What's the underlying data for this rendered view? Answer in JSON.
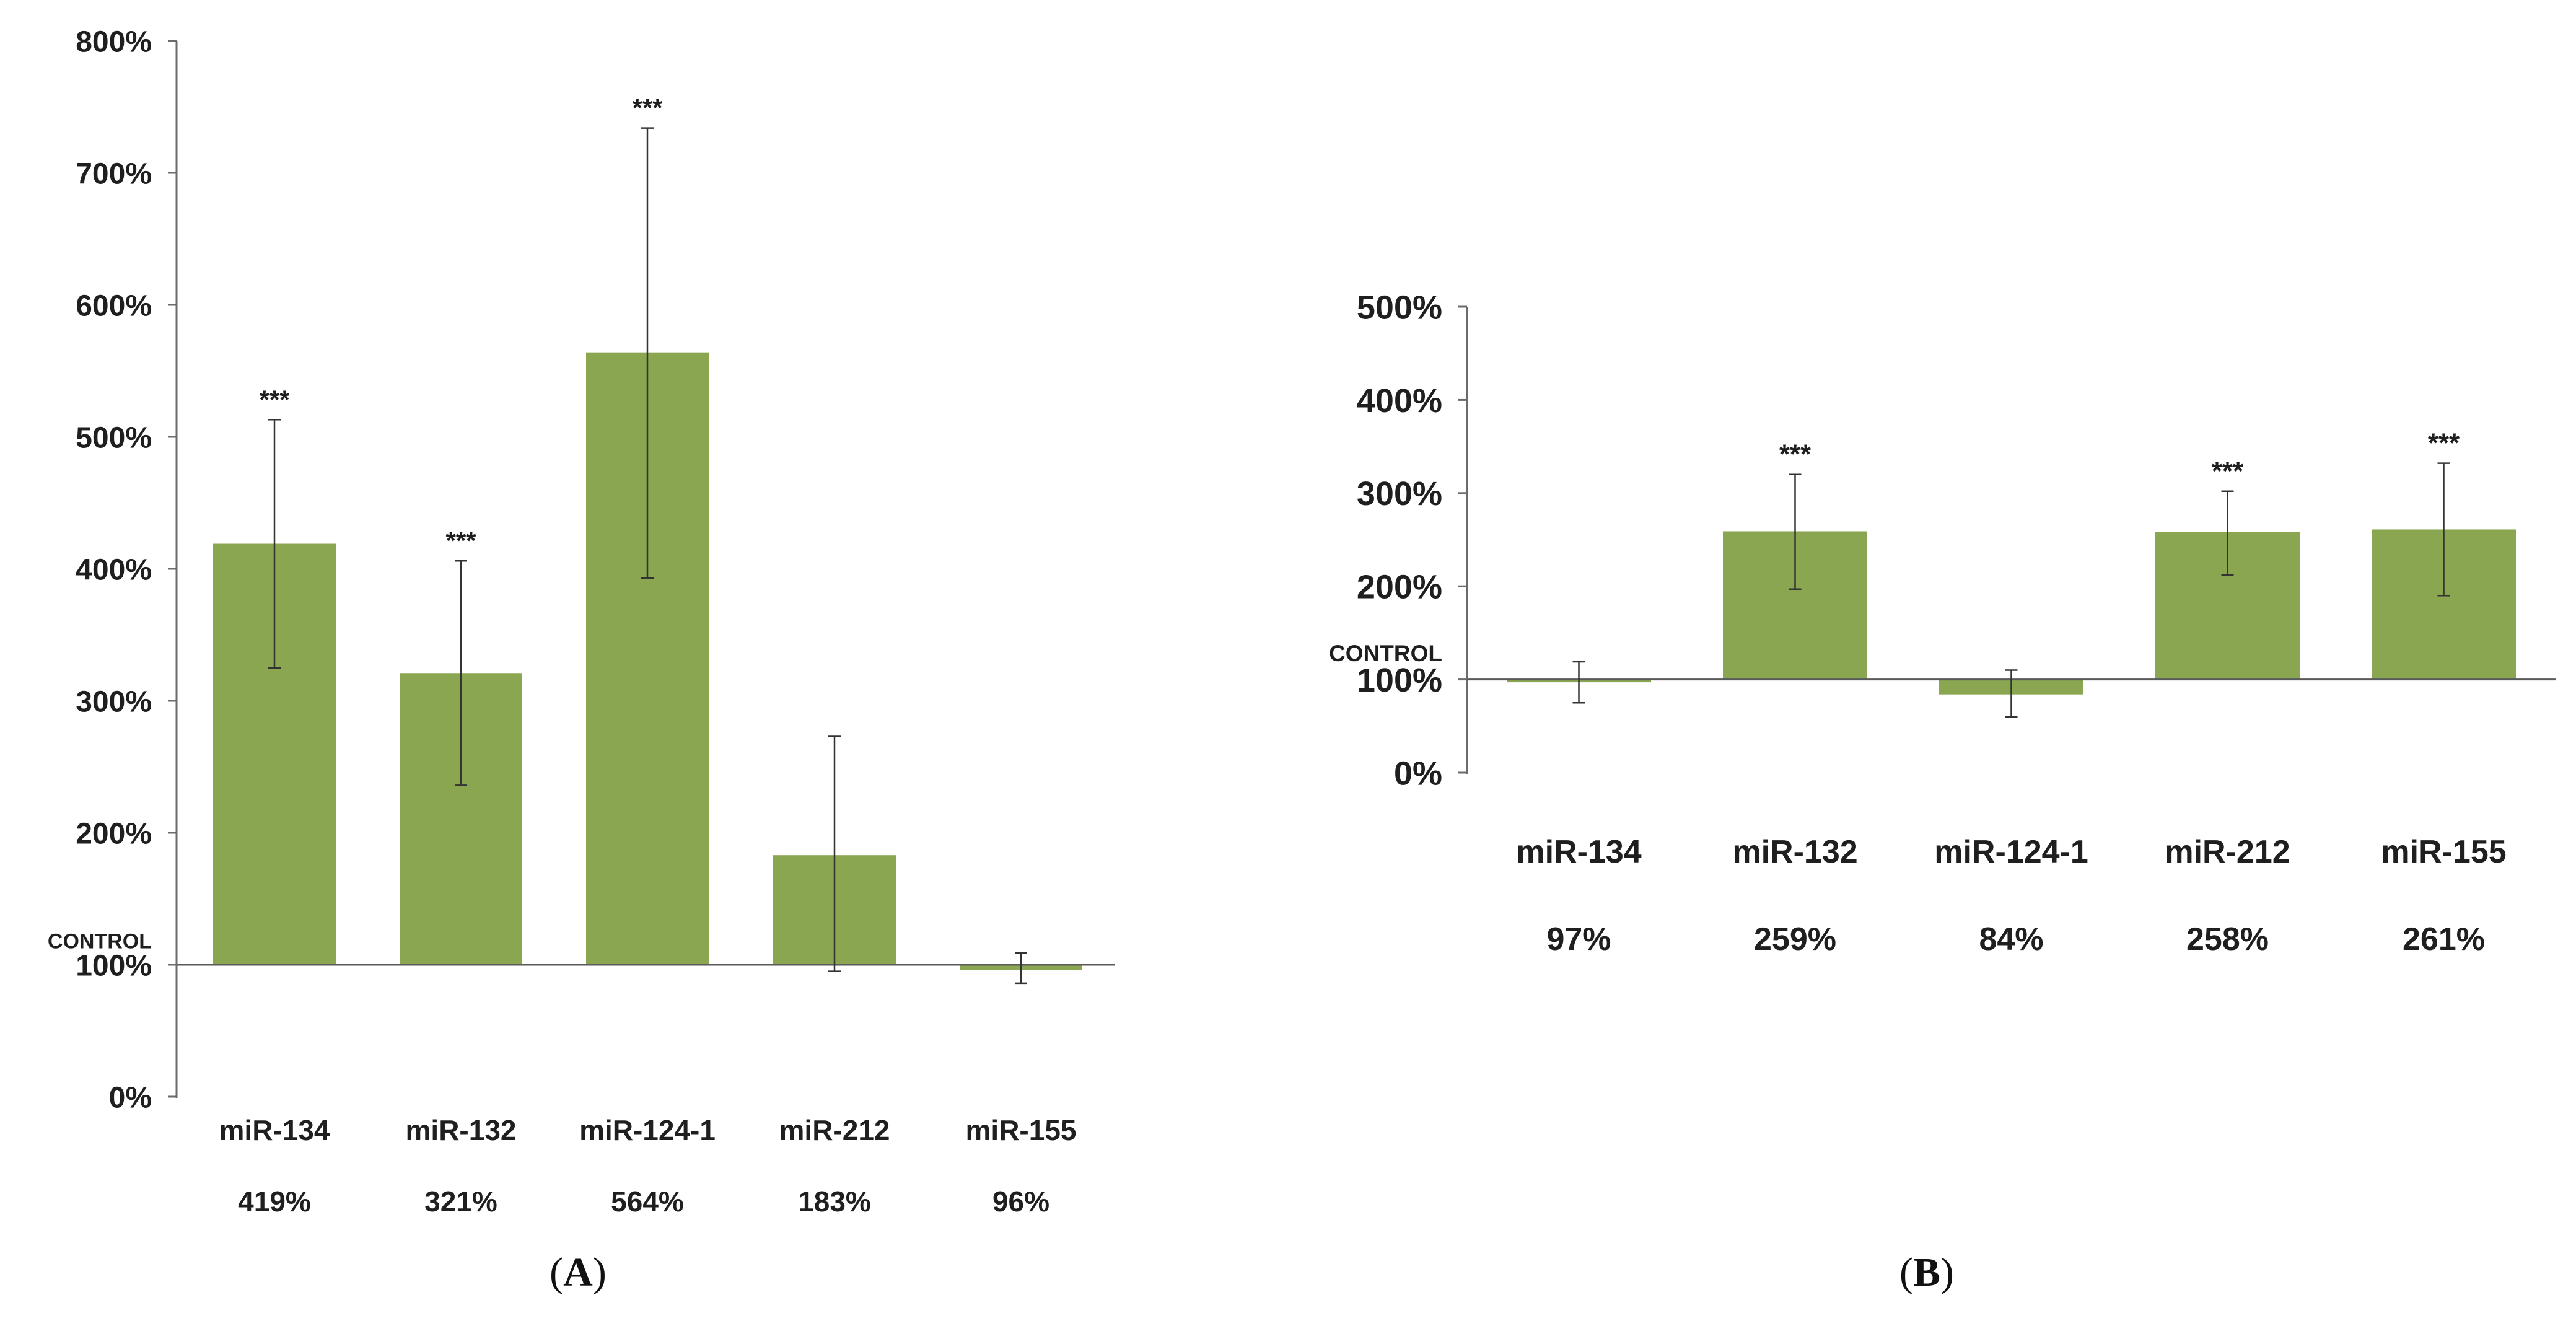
{
  "chart_data": [
    {
      "type": "bar",
      "panel_label": "A",
      "reference_label": "CONTROL",
      "baseline": 100,
      "ylim": [
        0,
        800
      ],
      "yticks": [
        0,
        100,
        200,
        300,
        400,
        500,
        600,
        700,
        800
      ],
      "ytick_labels": [
        "0%",
        "100%",
        "200%",
        "300%",
        "400%",
        "500%",
        "600%",
        "700%",
        "800%"
      ],
      "categories": [
        "miR-134",
        "miR-132",
        "miR-124-1",
        "miR-212",
        "miR-155"
      ],
      "value_labels": [
        "419%",
        "321%",
        "564%",
        "183%",
        "96%"
      ],
      "values": [
        419,
        321,
        564,
        183,
        96
      ],
      "error_low": [
        325,
        236,
        393,
        95,
        86
      ],
      "error_high": [
        513,
        406,
        734,
        273,
        109
      ],
      "significance": [
        "***",
        "***",
        "***",
        "",
        ""
      ],
      "bar_color": "#8aa650"
    },
    {
      "type": "bar",
      "panel_label": "B",
      "reference_label": "CONTROL",
      "baseline": 100,
      "ylim": [
        0,
        500
      ],
      "yticks": [
        0,
        100,
        200,
        300,
        400,
        500
      ],
      "ytick_labels": [
        "0%",
        "100%",
        "200%",
        "300%",
        "400%",
        "500%"
      ],
      "categories": [
        "miR-134",
        "miR-132",
        "miR-124-1",
        "miR-212",
        "miR-155"
      ],
      "value_labels": [
        "97%",
        "259%",
        "84%",
        "258%",
        "261%"
      ],
      "values": [
        97,
        259,
        84,
        258,
        261
      ],
      "error_low": [
        75,
        197,
        60,
        212,
        190
      ],
      "error_high": [
        119,
        320,
        110,
        302,
        332
      ],
      "significance": [
        "",
        "***",
        "",
        "***",
        "***"
      ],
      "bar_color": "#8aa650"
    }
  ]
}
